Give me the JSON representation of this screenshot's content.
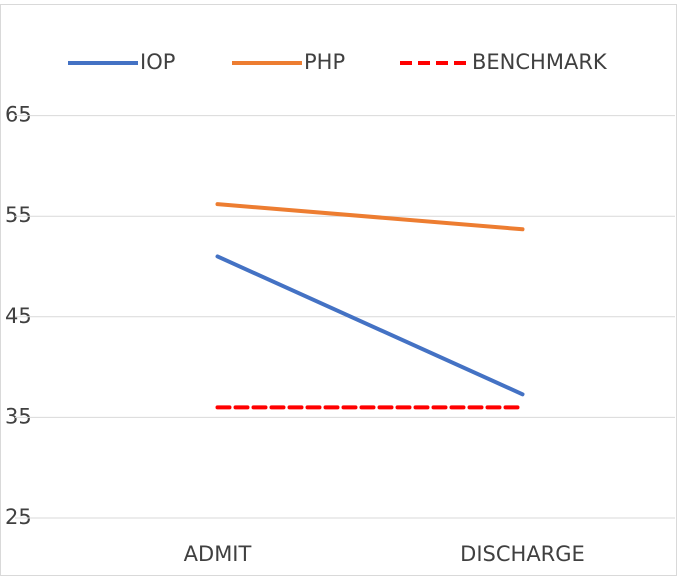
{
  "chart_data": {
    "type": "line",
    "categories": [
      "ADMIT",
      "DISCHARGE"
    ],
    "series": [
      {
        "name": "IOP",
        "color": "#4472c4",
        "values": [
          51,
          37.3
        ]
      },
      {
        "name": "PHP",
        "color": "#ed7d31",
        "values": [
          56.2,
          53.7
        ]
      },
      {
        "name": "BENCHMARK",
        "color": "#ff0000",
        "dashed": true,
        "values": [
          36,
          36
        ]
      }
    ],
    "ylim": [
      25,
      75
    ],
    "yticks": [
      25,
      35,
      45,
      55,
      65
    ],
    "grid": true,
    "legend": "top"
  }
}
